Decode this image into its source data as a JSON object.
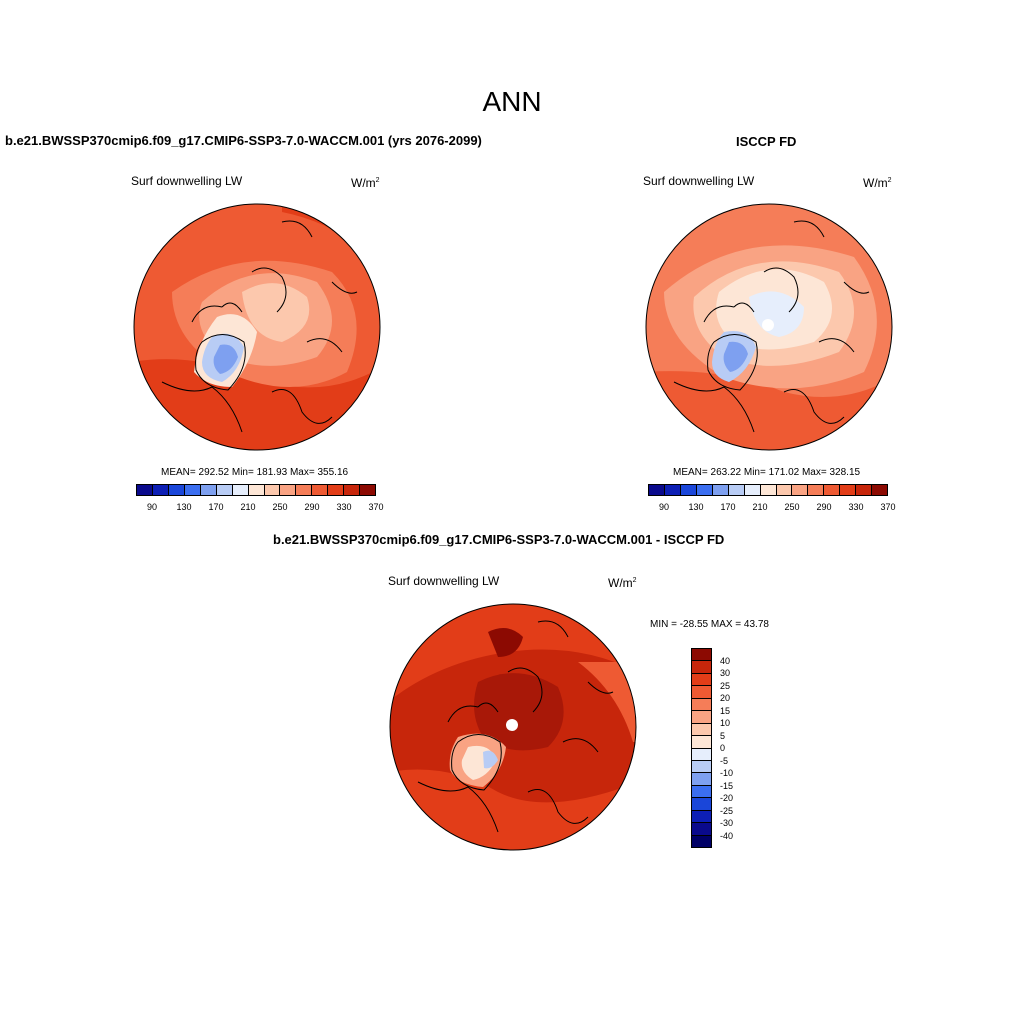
{
  "main_title": "ANN",
  "panels": [
    {
      "title": "b.e21.BWSSP370cmip6.f09_g17.CMIP6-SSP3-7.0-WACCM.001 (yrs 2076-2099)",
      "left_label": "Surf downwelling LW",
      "unit_base": "W/m",
      "unit_sup": "2",
      "stats": "MEAN= 292.52  Min= 181.93  Max= 355.16"
    },
    {
      "title": "ISCCP FD",
      "left_label": "Surf downwelling LW",
      "unit_base": "W/m",
      "unit_sup": "2",
      "stats": "MEAN= 263.22  Min= 171.02  Max= 328.15"
    },
    {
      "title": "b.e21.BWSSP370cmip6.f09_g17.CMIP6-SSP3-7.0-WACCM.001 - ISCCP FD",
      "left_label": "Surf downwelling LW",
      "unit_base": "W/m",
      "unit_sup": "2",
      "stats": "MIN = -28.55 MAX =  43.78"
    }
  ],
  "abs_colorbar": {
    "colors": [
      "#0a0a8c",
      "#0d1fb5",
      "#1a46d9",
      "#3b6ef0",
      "#7ea0f0",
      "#b8ccf5",
      "#e6eefc",
      "#fde6d6",
      "#fcc8ad",
      "#f9a383",
      "#f57d58",
      "#ee5a33",
      "#e23d18",
      "#c7260b",
      "#8c0a02"
    ],
    "tick_labels": [
      "90",
      "130",
      "170",
      "210",
      "250",
      "290",
      "330",
      "370"
    ]
  },
  "diff_colorbar": {
    "colors": [
      "#8c0a02",
      "#c7260b",
      "#e23d18",
      "#ee5a33",
      "#f57d58",
      "#f9a383",
      "#fcc8ad",
      "#fde6d6",
      "#e6eefc",
      "#b8ccf5",
      "#7ea0f0",
      "#3b6ef0",
      "#1a46d9",
      "#0d1fb5",
      "#0a0a8c",
      "#000066"
    ],
    "tick_labels": [
      "40",
      "30",
      "25",
      "20",
      "15",
      "10",
      "5",
      "0",
      "-5",
      "-10",
      "-15",
      "-20",
      "-25",
      "-30",
      "-40"
    ]
  }
}
